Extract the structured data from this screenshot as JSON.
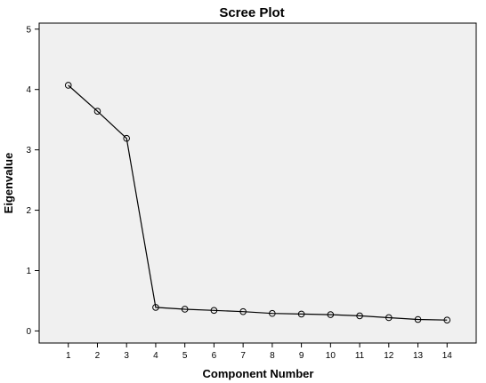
{
  "chart_data": {
    "type": "line",
    "title": "Scree Plot",
    "xlabel": "Component Number",
    "ylabel": "Eigenvalue",
    "x": [
      1,
      2,
      3,
      4,
      5,
      6,
      7,
      8,
      9,
      10,
      11,
      12,
      13,
      14
    ],
    "xticks": [
      "1",
      "2",
      "3",
      "4",
      "5",
      "6",
      "7",
      "8",
      "9",
      "10",
      "11",
      "12",
      "13",
      "14"
    ],
    "series": [
      {
        "values": [
          4.07,
          3.64,
          3.19,
          0.39,
          0.36,
          0.34,
          0.32,
          0.29,
          0.28,
          0.27,
          0.25,
          0.22,
          0.19,
          0.18
        ]
      }
    ],
    "ylim": [
      -0.2,
      5.1
    ],
    "yticks": [
      0,
      1,
      2,
      3,
      4,
      5
    ],
    "xlim": [
      0,
      15
    ],
    "grid": false,
    "markers": "open-circle"
  }
}
